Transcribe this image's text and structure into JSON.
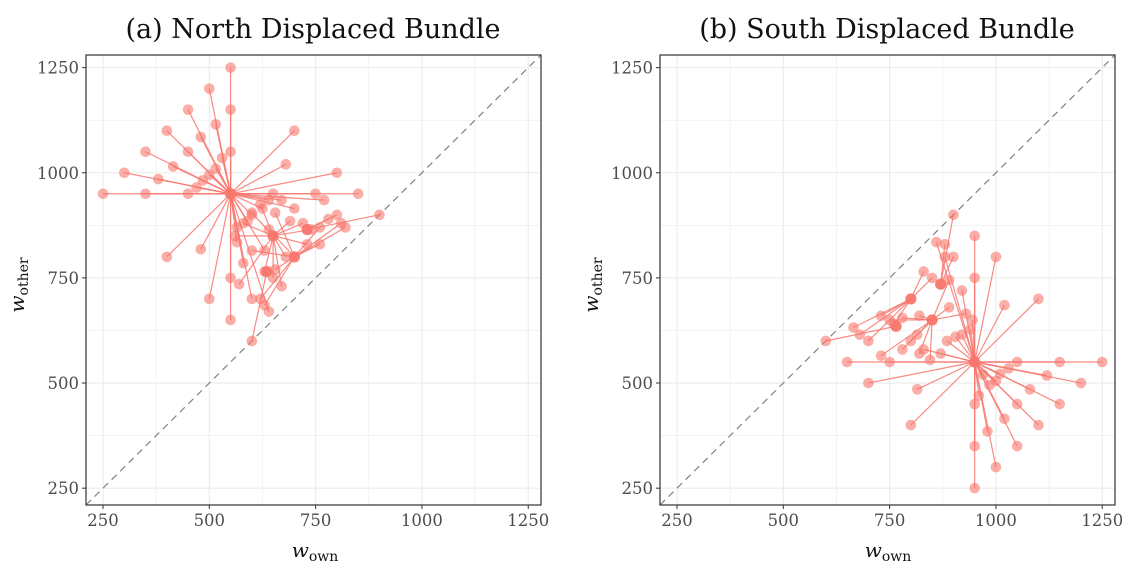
{
  "chart_data": [
    {
      "type": "scatter",
      "panel": "a",
      "title": "(a) North Displaced Bundle",
      "xlabel": {
        "main": "w",
        "sub": "own"
      },
      "ylabel": {
        "main": "w",
        "sub": "other"
      },
      "xlim": [
        210,
        1280
      ],
      "ylim": [
        210,
        1280
      ],
      "xticks": [
        250,
        500,
        750,
        1000,
        1250
      ],
      "yticks": [
        250,
        500,
        750,
        1000,
        1250
      ],
      "grid": true,
      "reference_line": "y = x",
      "colors": {
        "points": "#f8766d",
        "lines": "#f8766d",
        "reference": "#808080",
        "grid": "#ebebeb"
      },
      "groups": [
        {
          "center": [
            550,
            950
          ],
          "points": [
            [
              250,
              950
            ],
            [
              300,
              1000
            ],
            [
              350,
              1050
            ],
            [
              350,
              950
            ],
            [
              380,
              985
            ],
            [
              400,
              1100
            ],
            [
              415,
              1015
            ],
            [
              450,
              1150
            ],
            [
              450,
              1050
            ],
            [
              450,
              950
            ],
            [
              470,
              965
            ],
            [
              480,
              1085
            ],
            [
              485,
              982
            ],
            [
              500,
              1200
            ],
            [
              500,
              995
            ],
            [
              515,
              1115
            ],
            [
              515,
              1010
            ],
            [
              530,
              1035
            ],
            [
              550,
              1250
            ],
            [
              550,
              1150
            ],
            [
              550,
              1050
            ],
            [
              850,
              950
            ],
            [
              650,
              950
            ],
            [
              750,
              950
            ],
            [
              800,
              1000
            ],
            [
              700,
              1100
            ],
            [
              680,
              1020
            ],
            [
              770,
              935
            ],
            [
              700,
              915
            ],
            [
              550,
              650
            ],
            [
              550,
              750
            ],
            [
              400,
              800
            ],
            [
              480,
              818
            ],
            [
              500,
              700
            ],
            [
              565,
              835
            ],
            [
              565,
              870
            ],
            [
              590,
              885
            ],
            [
              600,
              900
            ],
            [
              625,
              915
            ],
            [
              640,
              935
            ],
            [
              670,
              935
            ],
            [
              630,
              815
            ],
            [
              580,
              785
            ],
            [
              600,
              700
            ],
            [
              640,
              670
            ]
          ]
        },
        {
          "center": [
            650,
            850
          ],
          "points": [
            [
              560,
              850
            ],
            [
              580,
              880
            ],
            [
              600,
              905
            ],
            [
              620,
              925
            ],
            [
              690,
              885
            ],
            [
              740,
              865
            ],
            [
              730,
              830
            ],
            [
              570,
              735
            ],
            [
              630,
              765
            ],
            [
              670,
              730
            ],
            [
              650,
              750
            ],
            [
              680,
              800
            ],
            [
              720,
              880
            ]
          ]
        },
        {
          "center": [
            700,
            800
          ],
          "points": [
            [
              600,
              815
            ],
            [
              640,
              865
            ],
            [
              655,
              905
            ],
            [
              760,
              830
            ],
            [
              810,
              880
            ],
            [
              820,
              870
            ],
            [
              760,
              870
            ],
            [
              620,
              700
            ],
            [
              630,
              685
            ],
            [
              655,
              770
            ]
          ]
        },
        {
          "center": [
            730,
            865
          ],
          "points": [
            [
              800,
              900
            ],
            [
              780,
              890
            ],
            [
              900,
              900
            ]
          ]
        },
        {
          "center": [
            635,
            765
          ],
          "points": [
            [
              600,
              600
            ]
          ]
        }
      ]
    },
    {
      "type": "scatter",
      "panel": "b",
      "title": "(b) South Displaced Bundle",
      "xlabel": {
        "main": "w",
        "sub": "own"
      },
      "ylabel": {
        "main": "w",
        "sub": "other"
      },
      "xlim": [
        210,
        1280
      ],
      "ylim": [
        210,
        1280
      ],
      "xticks": [
        250,
        500,
        750,
        1000,
        1250
      ],
      "yticks": [
        250,
        500,
        750,
        1000,
        1250
      ],
      "grid": true,
      "reference_line": "y = x",
      "colors": {
        "points": "#f8766d",
        "lines": "#f8766d",
        "reference": "#808080",
        "grid": "#ebebeb"
      },
      "groups": [
        {
          "center": [
            950,
            550
          ],
          "points": [
            [
              950,
              250
            ],
            [
              950,
              350
            ],
            [
              950,
              450
            ],
            [
              980,
              385
            ],
            [
              1000,
              300
            ],
            [
              1020,
              415
            ],
            [
              1050,
              350
            ],
            [
              1050,
              450
            ],
            [
              1100,
              400
            ],
            [
              1080,
              485
            ],
            [
              1150,
              450
            ],
            [
              1200,
              500
            ],
            [
              1120,
              518
            ],
            [
              1250,
              550
            ],
            [
              1150,
              550
            ],
            [
              1050,
              550
            ],
            [
              1100,
              700
            ],
            [
              1020,
              685
            ],
            [
              1000,
              800
            ],
            [
              950,
              850
            ],
            [
              950,
              750
            ],
            [
              945,
              650
            ],
            [
              940,
              628
            ],
            [
              920,
              720
            ],
            [
              880,
              800
            ],
            [
              860,
              835
            ],
            [
              800,
              400
            ],
            [
              815,
              485
            ],
            [
              650,
              550
            ],
            [
              700,
              500
            ],
            [
              750,
              550
            ],
            [
              830,
              580
            ],
            [
              885,
              600
            ],
            [
              905,
              610
            ],
            [
              920,
              615
            ],
            [
              970,
              520
            ],
            [
              960,
              470
            ],
            [
              985,
              495
            ],
            [
              1000,
              505
            ],
            [
              1010,
              522
            ],
            [
              1030,
              535
            ],
            [
              870,
              570
            ]
          ]
        },
        {
          "center": [
            850,
            650
          ],
          "points": [
            [
              750,
              650
            ],
            [
              780,
              655
            ],
            [
              820,
              660
            ],
            [
              890,
              680
            ],
            [
              930,
              665
            ],
            [
              890,
              745
            ],
            [
              800,
              600
            ],
            [
              780,
              580
            ],
            [
              820,
              570
            ],
            [
              845,
              555
            ],
            [
              730,
              565
            ],
            [
              815,
              615
            ]
          ]
        },
        {
          "center": [
            800,
            700
          ],
          "points": [
            [
              730,
              660
            ],
            [
              830,
              765
            ],
            [
              850,
              750
            ],
            [
              700,
              600
            ],
            [
              680,
              615
            ],
            [
              665,
              632
            ],
            [
              760,
              640
            ]
          ]
        },
        {
          "center": [
            870,
            735
          ],
          "points": [
            [
              900,
              900
            ],
            [
              900,
              800
            ],
            [
              880,
              830
            ]
          ]
        },
        {
          "center": [
            765,
            635
          ],
          "points": [
            [
              600,
              600
            ]
          ]
        }
      ]
    }
  ]
}
